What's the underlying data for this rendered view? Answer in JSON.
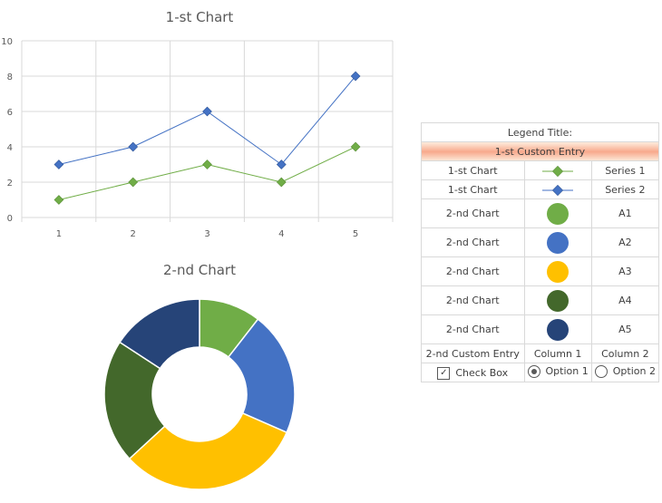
{
  "chart_data": [
    {
      "type": "line",
      "title": "1-st Chart",
      "x": [
        1,
        2,
        3,
        4,
        5
      ],
      "ylim": [
        0,
        10
      ],
      "yticks": [
        0,
        2,
        4,
        6,
        8,
        10
      ],
      "grid": true,
      "series": [
        {
          "name": "Series 1",
          "color": "#70ad47",
          "values": [
            1,
            2,
            3,
            2,
            4
          ]
        },
        {
          "name": "Series 2",
          "color": "#4472c4",
          "values": [
            3,
            4,
            6,
            3,
            8
          ]
        }
      ]
    },
    {
      "type": "pie",
      "title": "2-nd Chart",
      "donut": true,
      "categories": [
        "A1",
        "A2",
        "A3",
        "A4",
        "A5"
      ],
      "values": [
        10,
        20,
        30,
        20,
        15
      ],
      "colors": [
        "#70ad47",
        "#4472c4",
        "#ffc000",
        "#43682b",
        "#264478"
      ]
    }
  ],
  "legend": {
    "title": "Legend Title:",
    "custom_entry_1": "1-st Custom Entry",
    "chart1_rows": [
      {
        "chart": "1-st Chart",
        "label": "Series 1",
        "color": "#70ad47"
      },
      {
        "chart": "1-st Chart",
        "label": "Series 2",
        "color": "#4472c4"
      }
    ],
    "chart2_rows": [
      {
        "chart": "2-nd Chart",
        "label": "A1",
        "color": "#70ad47"
      },
      {
        "chart": "2-nd Chart",
        "label": "A2",
        "color": "#4472c4"
      },
      {
        "chart": "2-nd Chart",
        "label": "A3",
        "color": "#ffc000"
      },
      {
        "chart": "2-nd Chart",
        "label": "A4",
        "color": "#43682b"
      },
      {
        "chart": "2-nd Chart",
        "label": "A5",
        "color": "#264478"
      }
    ],
    "custom_entry_2": {
      "label": "2-nd Custom Entry",
      "col1": "Column 1",
      "col2": "Column 2"
    },
    "controls": {
      "checkbox_label": "Check Box",
      "checkbox_checked": true,
      "option1_label": "Option 1",
      "option1_selected": true,
      "option2_label": "Option 2",
      "option2_selected": false
    }
  }
}
